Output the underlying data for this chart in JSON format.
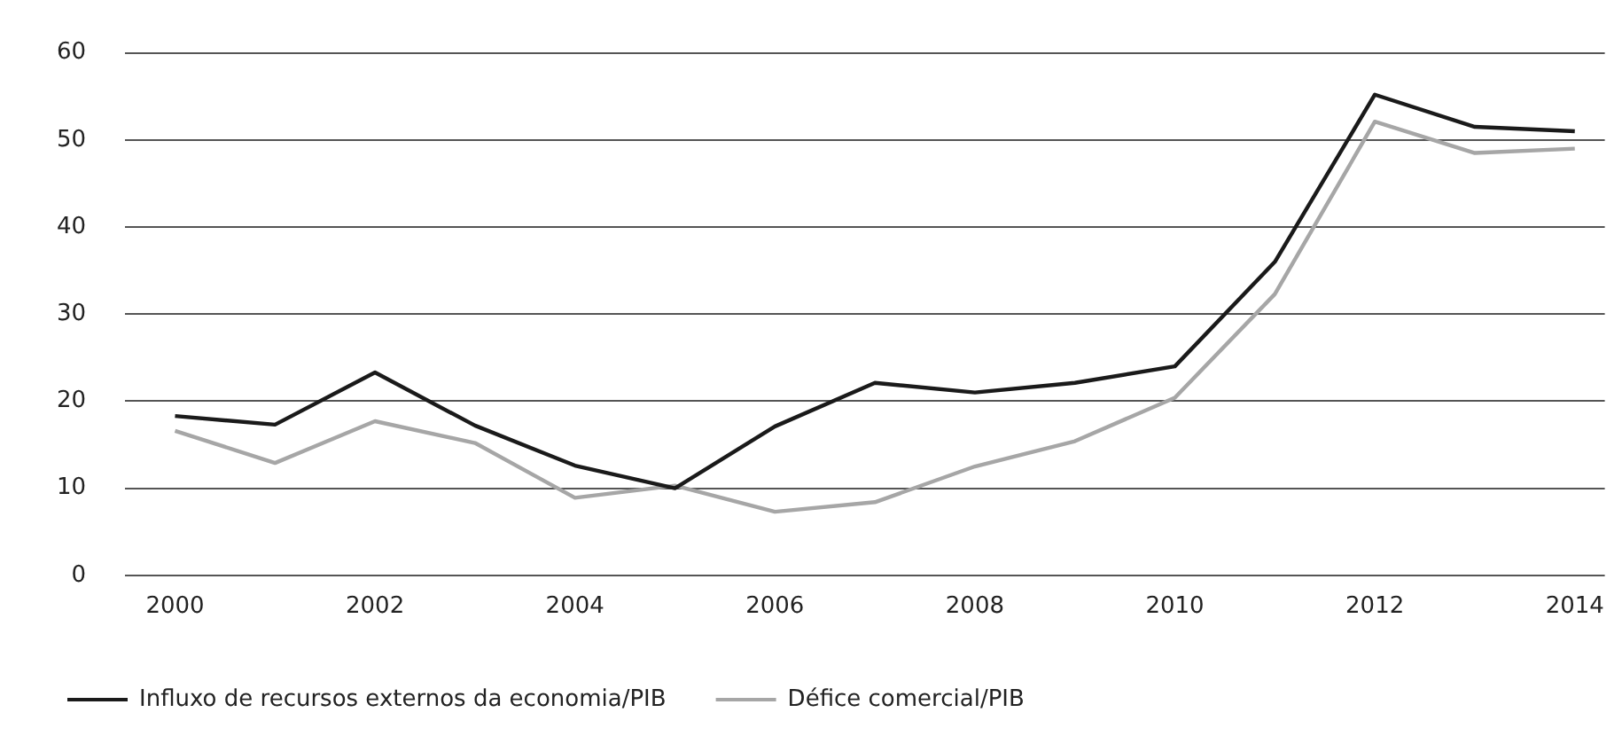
{
  "chart_data": {
    "type": "line",
    "x": [
      2000,
      2001,
      2002,
      2003,
      2004,
      2005,
      2006,
      2007,
      2008,
      2009,
      2010,
      2011,
      2012,
      2013,
      2014
    ],
    "series": [
      {
        "name": "Influxo de recursos externos da economia/PIB",
        "color": "#1a1a1a",
        "values": [
          18.3,
          17.3,
          23.3,
          17.2,
          12.6,
          10.0,
          17.1,
          22.1,
          21.0,
          22.1,
          24.0,
          36.0,
          55.2,
          51.5,
          51.0
        ]
      },
      {
        "name": "Défice comercial/PIB",
        "color": "#a6a6a6",
        "values": [
          16.6,
          12.9,
          17.7,
          15.2,
          8.9,
          10.3,
          7.3,
          8.4,
          12.5,
          15.4,
          20.4,
          32.3,
          52.1,
          48.5,
          49.0
        ]
      }
    ],
    "xlim": [
      1999.5,
      2014.3
    ],
    "xticks": [
      2000,
      2002,
      2004,
      2006,
      2008,
      2010,
      2012,
      2014
    ],
    "ylim": [
      0,
      60
    ],
    "yticks": [
      0,
      10,
      20,
      30,
      40,
      50,
      60
    ],
    "grid": "y",
    "legend": "bottom",
    "marker": "none",
    "line_style": "solid"
  }
}
